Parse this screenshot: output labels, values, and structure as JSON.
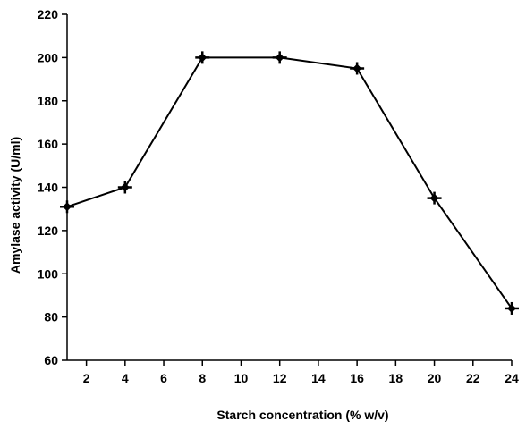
{
  "chart_data": {
    "type": "line",
    "title": "",
    "xlabel": "Starch concentration (% w/v)",
    "ylabel": "Amylase activity (U/ml)",
    "xlim": [
      1,
      24
    ],
    "ylim": [
      60,
      220
    ],
    "x_ticks": [
      2,
      4,
      6,
      8,
      10,
      12,
      14,
      16,
      18,
      20,
      22,
      24
    ],
    "y_ticks": [
      60,
      80,
      100,
      120,
      140,
      160,
      180,
      200,
      220
    ],
    "grid": false,
    "legend": "none",
    "series": [
      {
        "marker": "plus-diamond",
        "color": "#000000",
        "x": [
          1,
          4,
          8,
          12,
          16,
          20,
          24
        ],
        "y": [
          131,
          140,
          200,
          200,
          195,
          135,
          84
        ]
      }
    ]
  }
}
